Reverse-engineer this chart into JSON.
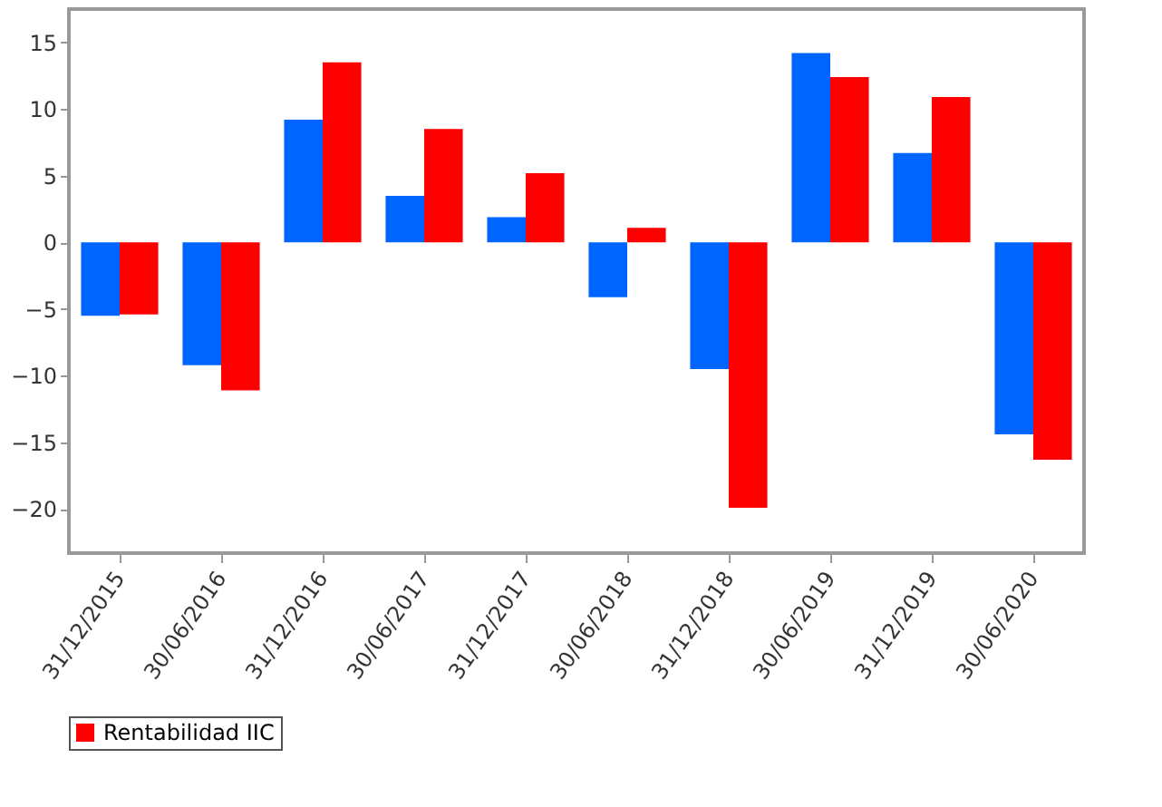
{
  "chart_data": {
    "type": "bar",
    "categories": [
      "31/12/2015",
      "30/06/2016",
      "31/12/2016",
      "30/06/2017",
      "31/12/2017",
      "30/06/2018",
      "31/12/2018",
      "30/06/2019",
      "31/12/2019",
      "30/06/2020"
    ],
    "series": [
      {
        "color": "#0064ff",
        "values": [
          -5.5,
          -9.2,
          9.2,
          3.5,
          1.9,
          -4.1,
          -9.5,
          14.2,
          6.7,
          -14.4
        ]
      },
      {
        "name": "Rentabilidad IIC",
        "color": "#ff0000",
        "values": [
          -5.4,
          -11.1,
          13.5,
          8.5,
          5.2,
          1.1,
          -19.9,
          12.4,
          10.9,
          -16.3
        ]
      }
    ],
    "ylim": [
      -23.3,
      17.5
    ],
    "yticks": [
      -20,
      -15,
      -10,
      -5,
      0,
      5,
      10,
      15
    ],
    "grid": false,
    "legend": "bottom"
  }
}
